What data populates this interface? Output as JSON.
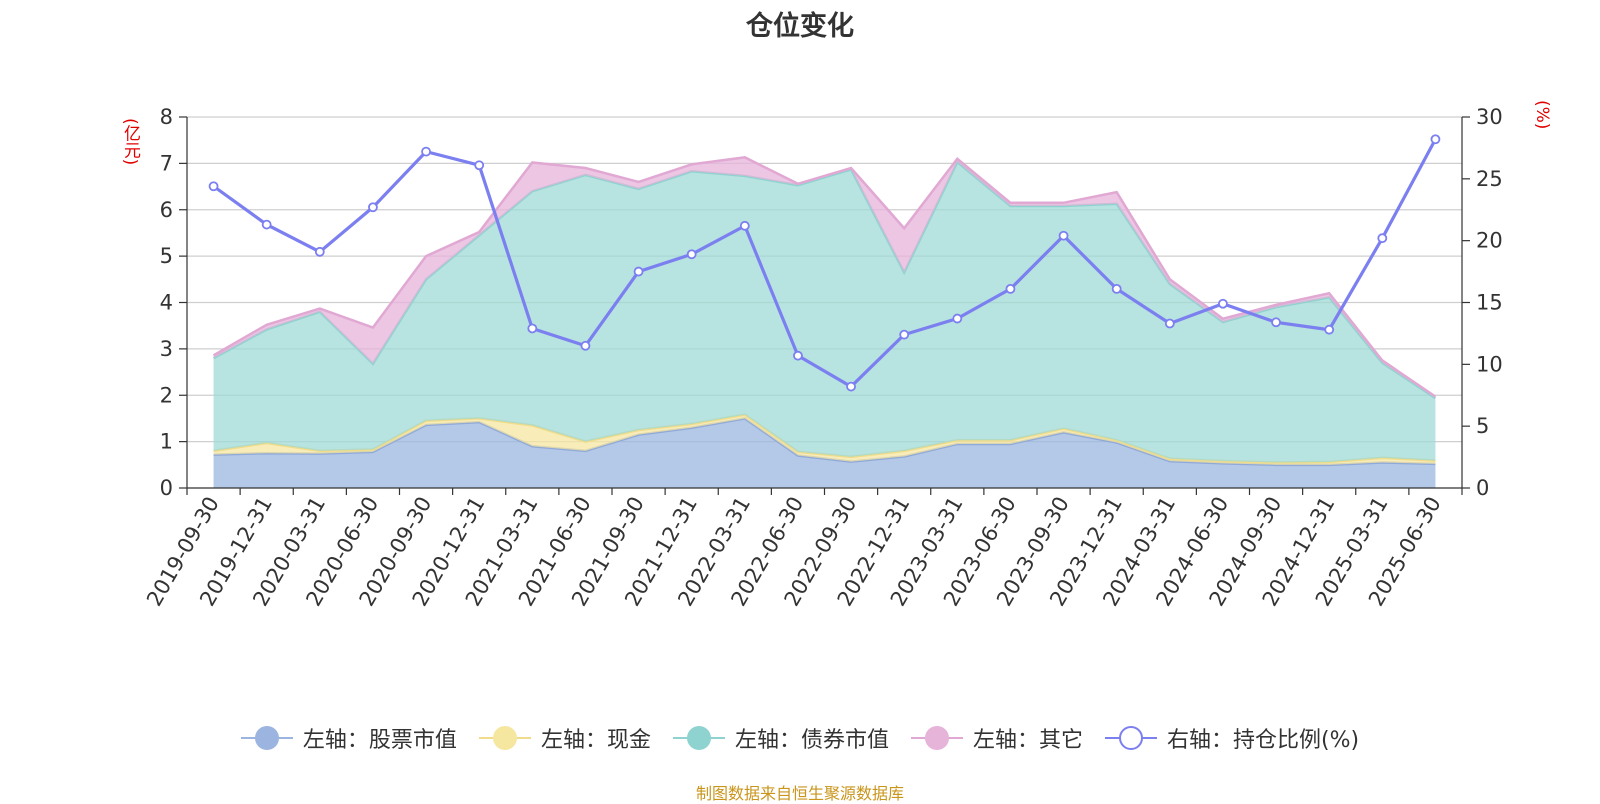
{
  "title": "仓位变化",
  "source_note": "制图数据来自恒生聚源数据库",
  "chart_data": {
    "type": "area",
    "title": "仓位变化",
    "left_axis_unit": "(亿元)",
    "right_axis_unit": "(%)",
    "left_ylim": [
      0,
      8
    ],
    "left_yticks": [
      0,
      1,
      2,
      3,
      4,
      5,
      6,
      7,
      8
    ],
    "right_ylim": [
      0,
      30
    ],
    "right_yticks": [
      0,
      5,
      10,
      15,
      20,
      25,
      30
    ],
    "grid": true,
    "legend_position": "bottom",
    "categories": [
      "2019-09-30",
      "2019-12-31",
      "2020-03-31",
      "2020-06-30",
      "2020-09-30",
      "2020-12-31",
      "2021-03-31",
      "2021-06-30",
      "2021-09-30",
      "2021-12-31",
      "2022-03-31",
      "2022-06-30",
      "2022-09-30",
      "2022-12-31",
      "2023-03-31",
      "2023-06-30",
      "2023-09-30",
      "2023-12-31",
      "2024-03-31",
      "2024-06-30",
      "2024-09-30",
      "2024-12-31",
      "2025-03-31",
      "2025-06-30"
    ],
    "series": [
      {
        "name": "左轴：股票市值",
        "axis": "left",
        "kind": "stacked-area",
        "color": "#9bb5e0",
        "values": [
          0.72,
          0.75,
          0.74,
          0.78,
          1.36,
          1.42,
          0.9,
          0.8,
          1.15,
          1.3,
          1.5,
          0.7,
          0.57,
          0.68,
          0.95,
          0.95,
          1.2,
          0.98,
          0.58,
          0.53,
          0.5,
          0.5,
          0.55,
          0.52
        ]
      },
      {
        "name": "左轴：现金",
        "axis": "left",
        "kind": "stacked-area",
        "color": "#f5e6a0",
        "values": [
          0.08,
          0.22,
          0.06,
          0.05,
          0.09,
          0.08,
          0.45,
          0.2,
          0.1,
          0.08,
          0.08,
          0.08,
          0.1,
          0.12,
          0.08,
          0.08,
          0.08,
          0.05,
          0.05,
          0.05,
          0.05,
          0.06,
          0.1,
          0.07
        ]
      },
      {
        "name": "左轴：债券市值",
        "axis": "left",
        "kind": "stacked-area",
        "color": "#9fd9d6",
        "values": [
          2.0,
          2.45,
          3.0,
          1.85,
          3.05,
          3.95,
          5.05,
          5.75,
          5.2,
          5.45,
          5.15,
          5.75,
          6.2,
          3.85,
          6.0,
          5.05,
          4.8,
          5.1,
          3.77,
          3.0,
          3.35,
          3.55,
          2.05,
          1.35
        ]
      },
      {
        "name": "左轴：其它",
        "axis": "left",
        "kind": "stacked-area",
        "color": "#e6b3d9",
        "values": [
          0.06,
          0.1,
          0.07,
          0.78,
          0.5,
          0.07,
          0.62,
          0.15,
          0.15,
          0.15,
          0.4,
          0.03,
          0.03,
          0.95,
          0.07,
          0.07,
          0.07,
          0.25,
          0.1,
          0.07,
          0.05,
          0.09,
          0.05,
          0.03
        ]
      },
      {
        "name": "右轴：持仓比例(%)",
        "axis": "right",
        "kind": "line",
        "color": "#7b7ff0",
        "values": [
          24.4,
          21.3,
          19.1,
          22.7,
          27.2,
          26.1,
          12.9,
          11.5,
          17.5,
          18.9,
          21.2,
          10.7,
          8.2,
          12.4,
          13.7,
          16.1,
          20.4,
          16.1,
          13.3,
          14.9,
          13.4,
          12.8,
          20.2,
          28.2
        ]
      }
    ]
  },
  "legend": [
    {
      "label": "左轴：股票市值",
      "color": "#9bb5e0",
      "line": "#9bb5e0",
      "style": "filled"
    },
    {
      "label": "左轴：现金",
      "color": "#f5e6a0",
      "line": "#f0dc8a",
      "style": "filled"
    },
    {
      "label": "左轴：债券市值",
      "color": "#8fd3d0",
      "line": "#8fd3d0",
      "style": "filled"
    },
    {
      "label": "左轴：其它",
      "color": "#e6b3d9",
      "line": "#e0a8d3",
      "style": "filled"
    },
    {
      "label": "右轴：持仓比例(%)",
      "color": "#ffffff",
      "line": "#7b7ff0",
      "style": "hollow"
    }
  ]
}
